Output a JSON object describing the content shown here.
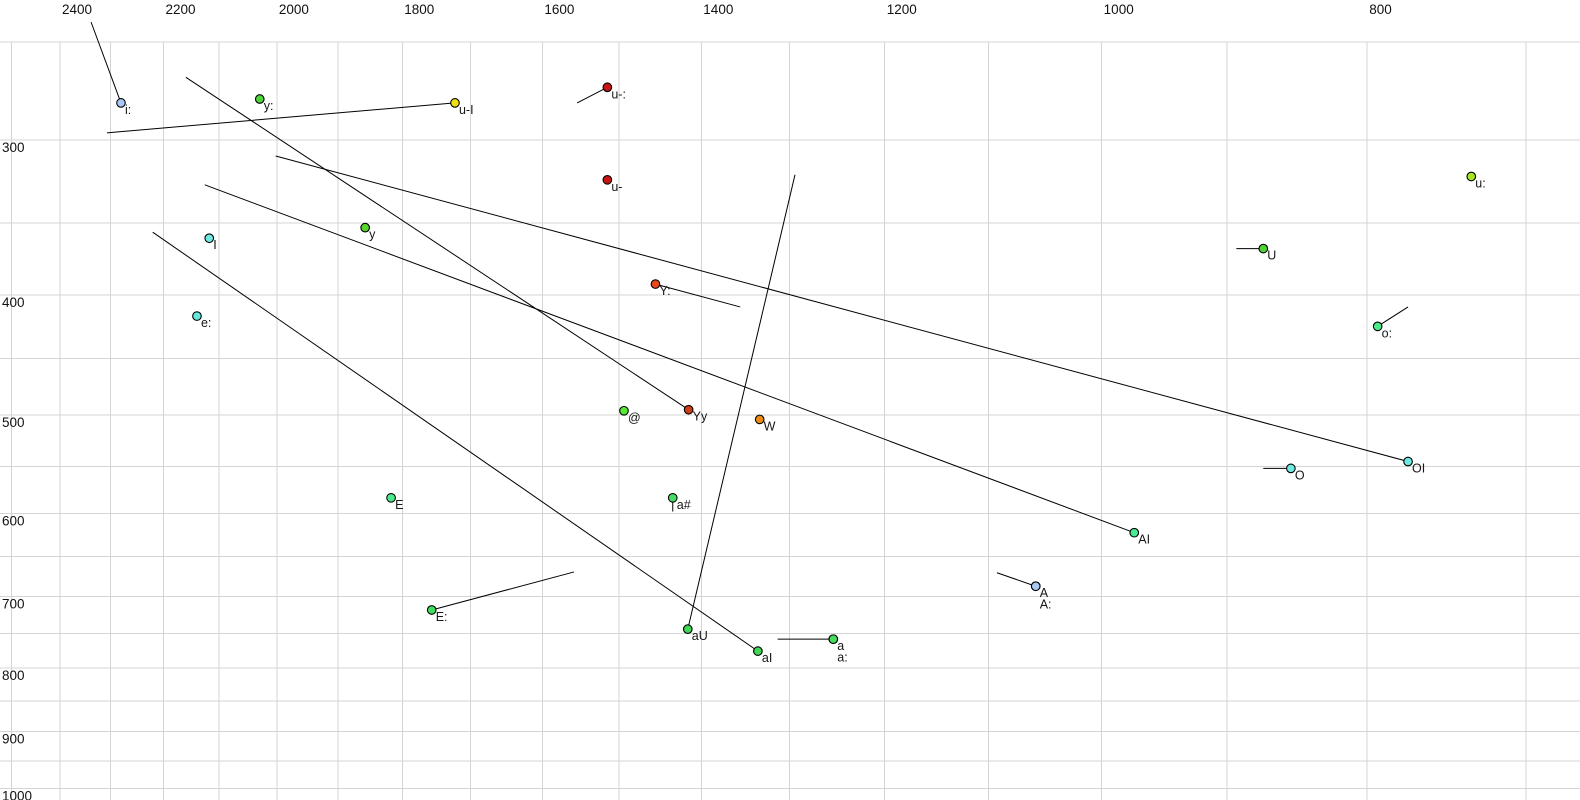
{
  "figure": {
    "background": "#ffffff",
    "grid_color": "#d4d4d4",
    "line_color": "#000000",
    "text_color": "#111111"
  },
  "chart_data": {
    "type": "scatter",
    "title": "",
    "x_axis": {
      "unit": "Hz",
      "scale": "log",
      "reversed": true,
      "side": "top",
      "tick_labels": [
        "2400",
        "2200",
        "2000",
        "1800",
        "1600",
        "1400",
        "1200",
        "1000",
        "800"
      ],
      "tick_values": [
        2400,
        2200,
        2000,
        1800,
        1600,
        1400,
        1200,
        1000,
        800
      ],
      "grid": {
        "min": 700,
        "max": 2500,
        "step": 100
      },
      "range_hz": [
        2524,
        669
      ]
    },
    "y_axis": {
      "unit": "Hz",
      "scale": "log",
      "reversed": false,
      "side": "left",
      "tick_labels": [
        "300",
        "400",
        "500",
        "600",
        "700",
        "800",
        "900",
        "1000"
      ],
      "tick_values": [
        300,
        400,
        500,
        600,
        700,
        800,
        900,
        1000
      ],
      "grid": {
        "min": 250,
        "max": 1000,
        "step": 50
      },
      "range_hz": [
        231.3,
        1021.8
      ]
    },
    "points": [
      {
        "label": "i:",
        "f2": 2280,
        "f1": 280,
        "color": "#a9c8f4",
        "tail": {
          "f2": 2338,
          "f1": 241
        }
      },
      {
        "label": "y:",
        "f2": 2029,
        "f1": 278,
        "color": "#4fd337",
        "tail": null
      },
      {
        "label": "u-I",
        "f2": 1722,
        "f1": 280,
        "color": "#f0e013",
        "tail": {
          "f2": 2307,
          "f1": 296
        }
      },
      {
        "label": "u-:",
        "f2": 1515,
        "f1": 272,
        "color": "#c81414",
        "tail": {
          "f2": 1554,
          "f1": 280
        }
      },
      {
        "label": "u-",
        "f2": 1515,
        "f1": 323,
        "color": "#c81414",
        "tail": null
      },
      {
        "label": "y",
        "f2": 1857,
        "f1": 353,
        "color": "#58d52b",
        "tail": null
      },
      {
        "label": "I",
        "f2": 2117,
        "f1": 360,
        "color": "#6fe9e1",
        "tail": null
      },
      {
        "label": "e:",
        "f2": 2139,
        "f1": 416,
        "color": "#63e8da",
        "tail": null
      },
      {
        "label": "u:",
        "f2": 733,
        "f1": 321,
        "color": "#a5e621",
        "tail": null
      },
      {
        "label": "U",
        "f2": 873,
        "f1": 367,
        "color": "#4fd337",
        "tail": {
          "f2": 893,
          "f1": 367
        }
      },
      {
        "label": "o:",
        "f2": 793,
        "f1": 424,
        "color": "#4dea8d",
        "tail": {
          "f2": 773,
          "f1": 409
        }
      },
      {
        "label": "Y:",
        "f2": 1455,
        "f1": 392,
        "color": "#e8481b",
        "tail": {
          "f2": 1355,
          "f1": 409
        }
      },
      {
        "label": "@",
        "f2": 1494,
        "f1": 496,
        "color": "#57e834",
        "tail": null
      },
      {
        "label": "Yy",
        "f2": 1415,
        "f1": 495,
        "color": "#cf3d14",
        "tail": {
          "f2": 2159,
          "f1": 267
        }
      },
      {
        "label": "W",
        "f2": 1333,
        "f1": 504,
        "color": "#e98b15",
        "tail": null
      },
      {
        "label": "O",
        "f2": 853,
        "f1": 552,
        "color": "#6fe9e1",
        "tail": {
          "f2": 873,
          "f1": 552
        }
      },
      {
        "label": "OI",
        "f2": 773,
        "f1": 545,
        "color": "#6fe9e1",
        "tail": {
          "f2": 2002,
          "f1": 309
        }
      },
      {
        "label": "E",
        "f2": 1817,
        "f1": 583,
        "color": "#4dea8d",
        "tail": null
      },
      {
        "label": "a#",
        "f2": 1434,
        "f1": 583,
        "color": "#48dc66",
        "tail": {
          "f2": 1434,
          "f1": 598
        }
      },
      {
        "label": "AI",
        "f2": 973,
        "f1": 622,
        "color": "#49e892",
        "tail": {
          "f2": 2125,
          "f1": 326
        }
      },
      {
        "label": "A",
        "f2": 1057,
        "f1": 687,
        "color": "#a9c8f4",
        "tail": {
          "f2": 1092,
          "f1": 670
        }
      },
      {
        "label": "A:",
        "f2": 1057,
        "f1": 687,
        "color": "#a9c8f4",
        "tail": null,
        "label_row": 2
      },
      {
        "label": "E:",
        "f2": 1756,
        "f1": 718,
        "color": "#40dc5e",
        "tail": {
          "f2": 1558,
          "f1": 669
        }
      },
      {
        "label": "aU",
        "f2": 1416,
        "f1": 744,
        "color": "#40d955",
        "tail": {
          "f2": 1294,
          "f1": 320
        }
      },
      {
        "label": "aI",
        "f2": 1335,
        "f1": 775,
        "color": "#40d955",
        "tail": {
          "f2": 2220,
          "f1": 356
        }
      },
      {
        "label": "a",
        "f2": 1253,
        "f1": 758,
        "color": "#44dc58",
        "tail": {
          "f2": 1313,
          "f1": 758
        }
      },
      {
        "label": "a:",
        "f2": 1253,
        "f1": 758,
        "color": "#44dc58",
        "tail": null,
        "label_row": 2
      }
    ]
  }
}
